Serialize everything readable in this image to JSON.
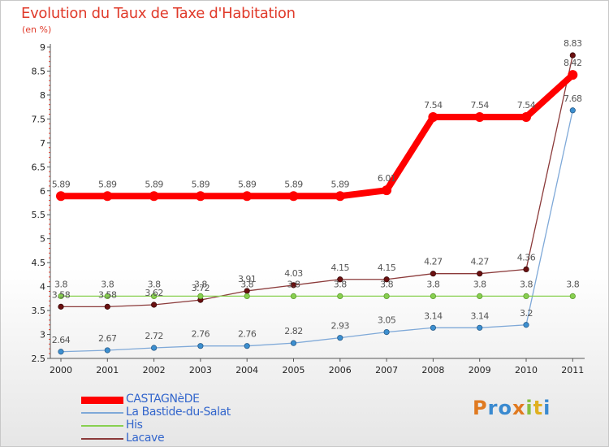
{
  "chart_data": {
    "type": "line",
    "title": "Evolution du Taux de Taxe d'Habitation",
    "subtitle": "(en %)",
    "x": [
      "2000",
      "2001",
      "2002",
      "2003",
      "2004",
      "2005",
      "2006",
      "2007",
      "2008",
      "2009",
      "2010",
      "2011"
    ],
    "ylim": [
      2.5,
      9
    ],
    "yticks": [
      "2.5",
      "3",
      "3.5",
      "4",
      "4.5",
      "5",
      "5.5",
      "6",
      "6.5",
      "7",
      "7.5",
      "8",
      "8.5",
      "9"
    ],
    "grid": false,
    "legend_position": "bottom-left",
    "series": [
      {
        "name": "CASTAGNèDE",
        "color": "#ff0000",
        "values": [
          5.89,
          5.89,
          5.89,
          5.89,
          5.89,
          5.89,
          5.89,
          6.01,
          7.54,
          7.54,
          7.54,
          8.42
        ],
        "labels": [
          "5.89",
          "5.89",
          "5.89",
          "5.89",
          "5.89",
          "5.89",
          "5.89",
          "6.01",
          "7.54",
          "7.54",
          "7.54",
          "8.42"
        ]
      },
      {
        "name": "La Bastide-du-Salat",
        "color": "#7fa9d8",
        "values": [
          2.64,
          2.67,
          2.72,
          2.76,
          2.76,
          2.82,
          2.93,
          3.05,
          3.14,
          3.14,
          3.2,
          7.68
        ],
        "labels": [
          "2.64",
          "2.67",
          "2.72",
          "2.76",
          "2.76",
          "2.82",
          "2.93",
          "3.05",
          "3.14",
          "3.14",
          "3.2",
          "7.68"
        ]
      },
      {
        "name": "His",
        "color": "#88d050",
        "values": [
          3.8,
          3.8,
          3.8,
          3.8,
          3.8,
          3.8,
          3.8,
          3.8,
          3.8,
          3.8,
          3.8,
          3.8
        ],
        "labels": [
          "3.8",
          "3.8",
          "3.8",
          "3.8",
          "3.8",
          "3.8",
          "3.8",
          "3.8",
          "3.8",
          "3.8",
          "3.8",
          "3.8"
        ]
      },
      {
        "name": "Lacave",
        "color": "#8b3a3a",
        "values": [
          3.58,
          3.58,
          3.62,
          3.72,
          3.91,
          4.03,
          4.15,
          4.15,
          4.27,
          4.27,
          4.36,
          8.83
        ],
        "labels": [
          "3.58",
          "3.58",
          "3.62",
          "3.72",
          "3.91",
          "4.03",
          "4.15",
          "4.15",
          "4.27",
          "4.27",
          "4.36",
          "8.83"
        ]
      }
    ]
  },
  "logo": {
    "text": "Proxiti"
  }
}
